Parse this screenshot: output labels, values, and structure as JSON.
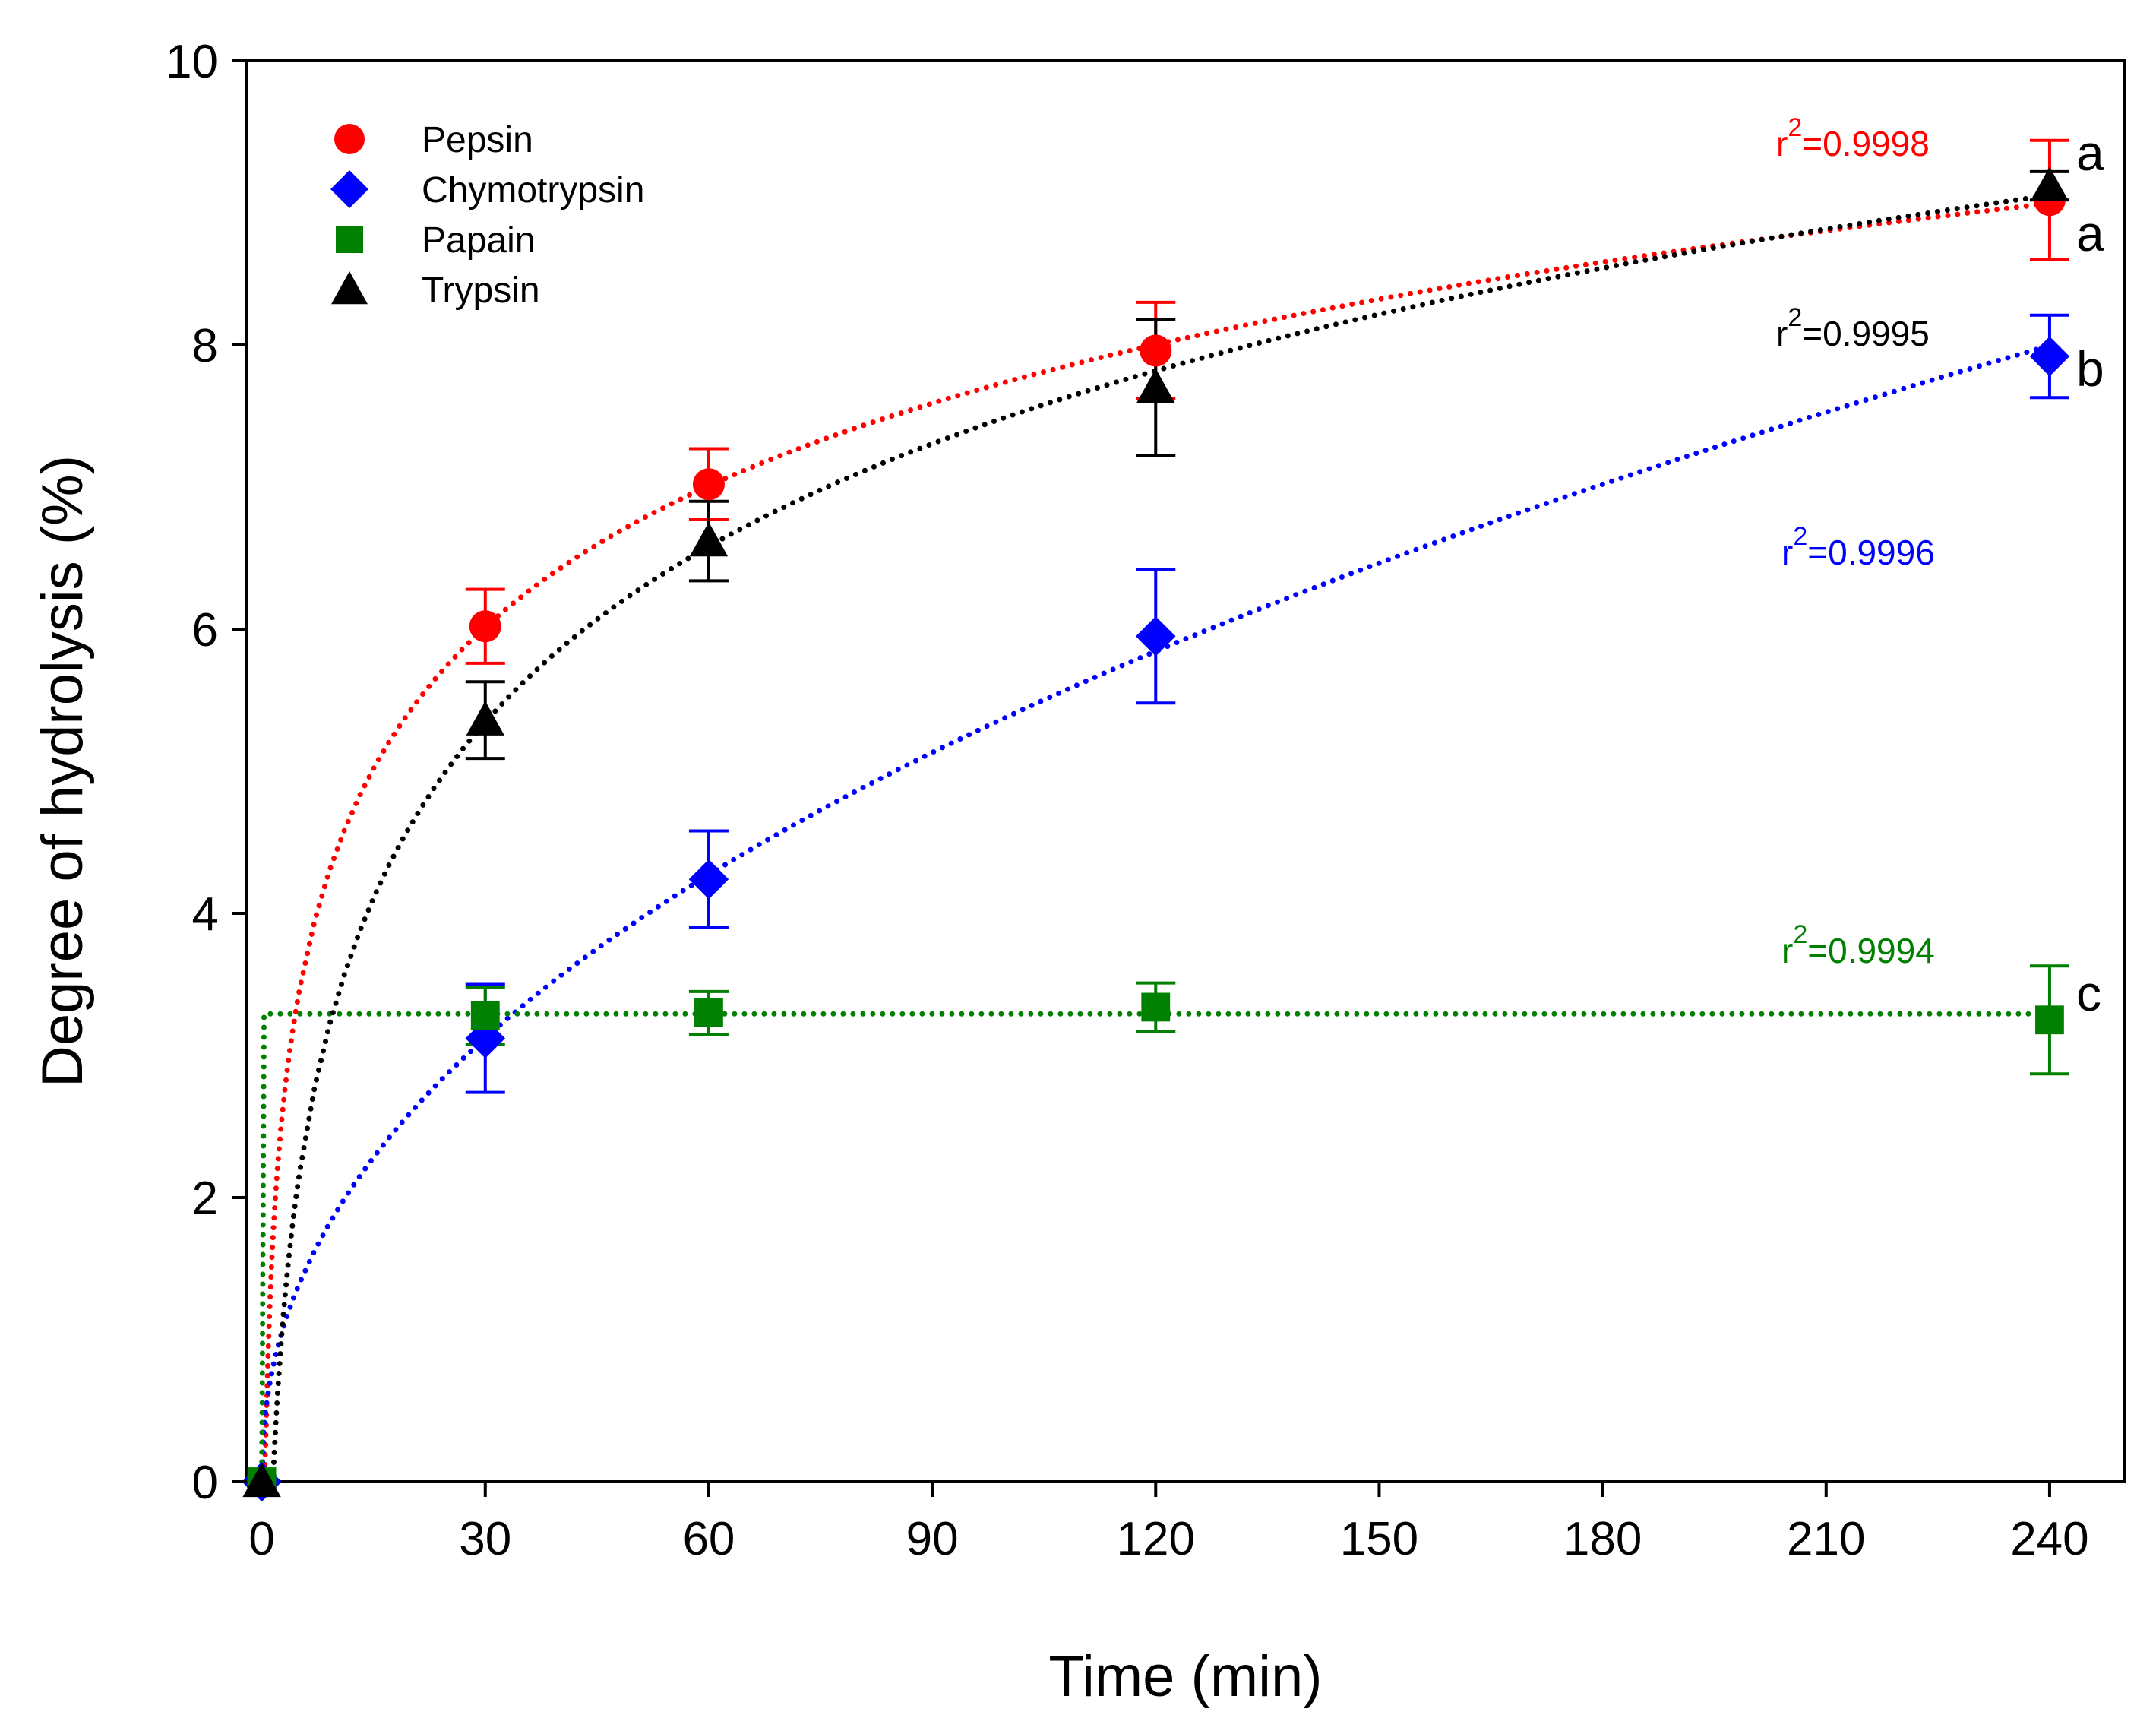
{
  "chart_data": {
    "type": "scatter",
    "title": "",
    "xlabel": "Time (min)",
    "ylabel": "Degree of hydrolysis (%)",
    "xlim": [
      -2,
      250
    ],
    "ylim": [
      0,
      10
    ],
    "xticks": [
      "0",
      "30",
      "60",
      "90",
      "120",
      "150",
      "180",
      "210",
      "240"
    ],
    "yticks": [
      "0",
      "2",
      "4",
      "6",
      "8",
      "10"
    ],
    "x": [
      0,
      30,
      60,
      120,
      240
    ],
    "legend_position": "top-left",
    "series": [
      {
        "name": "Pepsin",
        "color": "#ff0000",
        "marker": "circle",
        "values": [
          0,
          6.02,
          7.02,
          7.96,
          9.02
        ],
        "errors": [
          0,
          0.26,
          0.25,
          0.34,
          0.42
        ],
        "fit": "log",
        "r2_prefix": "r",
        "r2_exp": "2",
        "r2_value": "=0.9998",
        "letter": "a"
      },
      {
        "name": "Chymotrypsin",
        "color": "#0000ff",
        "marker": "diamond",
        "values": [
          0,
          3.12,
          4.24,
          5.95,
          7.92
        ],
        "errors": [
          0,
          0.38,
          0.34,
          0.47,
          0.29
        ],
        "fit": "power",
        "r2_prefix": "r",
        "r2_exp": "2",
        "r2_value": "=0.9996",
        "letter": "b"
      },
      {
        "name": "Papain",
        "color": "#008000",
        "marker": "square",
        "values": [
          0,
          3.28,
          3.3,
          3.34,
          3.25
        ],
        "errors": [
          0,
          0.2,
          0.15,
          0.17,
          0.38
        ],
        "fit": "plateau",
        "r2_prefix": "r",
        "r2_exp": "2",
        "r2_value": "=0.9994",
        "letter": "c"
      },
      {
        "name": "Trypsin",
        "color": "#000000",
        "marker": "triangle",
        "values": [
          0,
          5.36,
          6.62,
          7.7,
          9.12
        ],
        "errors": [
          0,
          0.27,
          0.28,
          0.48,
          0.1
        ],
        "fit": "log",
        "r2_prefix": "r",
        "r2_exp": "2",
        "r2_value": "=0.9995",
        "letter": "a"
      }
    ]
  }
}
